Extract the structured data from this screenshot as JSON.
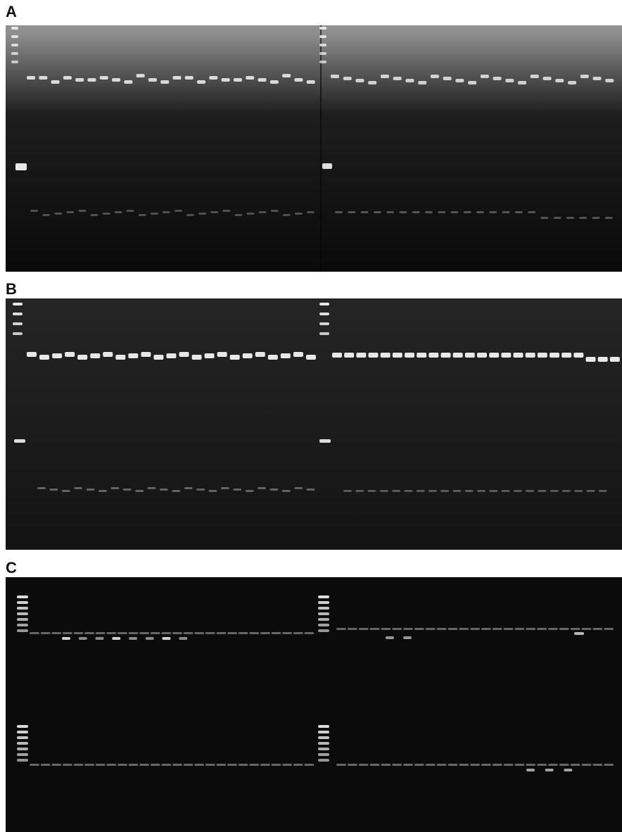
{
  "figure": {
    "panels": [
      {
        "label": "A"
      },
      {
        "label": "B"
      },
      {
        "label": "C"
      }
    ]
  },
  "colors": {
    "page_background": "#ffffff",
    "gel_background": "#0c0c0c",
    "band": "#f2f2f2",
    "label": "#111111"
  }
}
